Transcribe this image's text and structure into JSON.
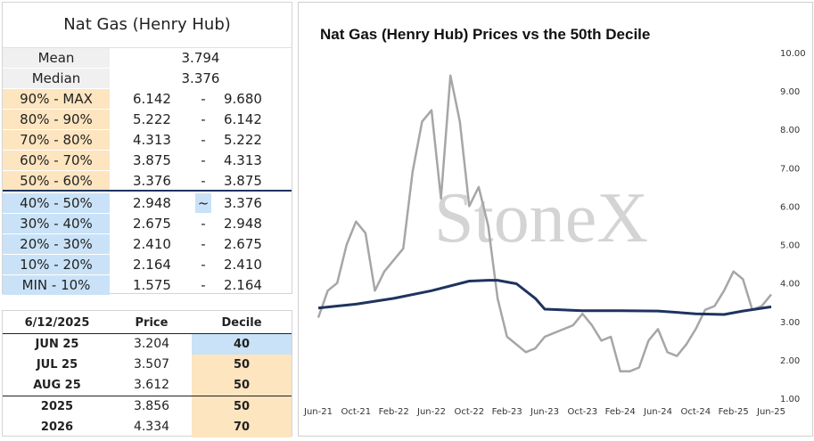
{
  "table": {
    "title": "Nat Gas (Henry Hub)",
    "mean_label": "Mean",
    "mean_value": "3.794",
    "median_label": "Median",
    "median_value": "3.376",
    "deciles": [
      {
        "label": "90% - MAX",
        "lo": "6.142",
        "sep": "-",
        "hi": "9.680",
        "color": "orange"
      },
      {
        "label": "80% - 90%",
        "lo": "5.222",
        "sep": "-",
        "hi": "6.142",
        "color": "orange"
      },
      {
        "label": "70% - 80%",
        "lo": "4.313",
        "sep": "-",
        "hi": "5.222",
        "color": "orange"
      },
      {
        "label": "60% - 70%",
        "lo": "3.875",
        "sep": "-",
        "hi": "4.313",
        "color": "orange"
      },
      {
        "label": "50% - 60%",
        "lo": "3.376",
        "sep": "-",
        "hi": "3.875",
        "color": "orange"
      },
      {
        "label": "40% - 50%",
        "lo": "2.948",
        "sep": "~",
        "hi": "3.376",
        "color": "blue"
      },
      {
        "label": "30% - 40%",
        "lo": "2.675",
        "sep": "-",
        "hi": "2.948",
        "color": "blue"
      },
      {
        "label": "20% - 30%",
        "lo": "2.410",
        "sep": "-",
        "hi": "2.675",
        "color": "blue"
      },
      {
        "label": "10% - 20%",
        "lo": "2.164",
        "sep": "-",
        "hi": "2.410",
        "color": "blue"
      },
      {
        "label": "MIN - 10%",
        "lo": "1.575",
        "sep": "-",
        "hi": "2.164",
        "color": "blue"
      }
    ]
  },
  "contracts": {
    "date_header": "6/12/2025",
    "price_header": "Price",
    "decile_header": "Decile",
    "rows": [
      {
        "name": "JUN 25",
        "price": "3.204",
        "decile": "40",
        "color": "blue"
      },
      {
        "name": "JUL 25",
        "price": "3.507",
        "decile": "50",
        "color": "orange"
      },
      {
        "name": "AUG 25",
        "price": "3.612",
        "decile": "50",
        "color": "orange"
      },
      {
        "name": "2025",
        "price": "3.856",
        "decile": "50",
        "color": "orange"
      },
      {
        "name": "2026",
        "price": "4.334",
        "decile": "70",
        "color": "orange"
      }
    ]
  },
  "watermark": "StoneX",
  "chart_data": {
    "type": "line",
    "title": "Nat Gas (Henry Hub) Prices vs the 50th Decile",
    "x_ticks": [
      "Jun-21",
      "Oct-21",
      "Feb-22",
      "Jun-22",
      "Oct-22",
      "Feb-23",
      "Jun-23",
      "Oct-23",
      "Feb-24",
      "Jun-24",
      "Oct-24",
      "Feb-25",
      "Jun-25"
    ],
    "y_ticks": [
      "1.00",
      "2.00",
      "3.00",
      "4.00",
      "5.00",
      "6.00",
      "7.00",
      "8.00",
      "9.00",
      "10.00"
    ],
    "ylim": [
      1,
      10
    ],
    "xlim": [
      "Jun-21",
      "Jun-25"
    ],
    "y_axis_position": "right",
    "grid": false,
    "series": [
      {
        "color": "#a6a6a6",
        "x": [
          "Jun-21",
          "Jul-21",
          "Aug-21",
          "Sep-21",
          "Oct-21",
          "Nov-21",
          "Dec-21",
          "Jan-22",
          "Feb-22",
          "Mar-22",
          "Apr-22",
          "May-22",
          "Jun-22",
          "Jul-22",
          "Aug-22",
          "Sep-22",
          "Oct-22",
          "Nov-22",
          "Dec-22",
          "Jan-23",
          "Feb-23",
          "Mar-23",
          "Apr-23",
          "May-23",
          "Jun-23",
          "Jul-23",
          "Aug-23",
          "Sep-23",
          "Oct-23",
          "Nov-23",
          "Dec-23",
          "Jan-24",
          "Feb-24",
          "Mar-24",
          "Apr-24",
          "May-24",
          "Jun-24",
          "Jul-24",
          "Aug-24",
          "Sep-24",
          "Oct-24",
          "Nov-24",
          "Dec-24",
          "Jan-25",
          "Feb-25",
          "Mar-25",
          "Apr-25",
          "May-25",
          "Jun-25"
        ],
        "y": [
          3.1,
          3.8,
          4.0,
          5.0,
          5.6,
          5.3,
          3.8,
          4.3,
          4.6,
          4.9,
          6.9,
          8.2,
          8.5,
          6.2,
          9.4,
          8.2,
          6.0,
          6.5,
          5.5,
          3.6,
          2.6,
          2.4,
          2.2,
          2.3,
          2.6,
          2.7,
          2.8,
          2.9,
          3.2,
          2.9,
          2.5,
          2.6,
          1.7,
          1.7,
          1.8,
          2.5,
          2.8,
          2.2,
          2.1,
          2.4,
          2.8,
          3.3,
          3.4,
          3.8,
          4.3,
          4.1,
          3.3,
          3.4,
          3.7
        ]
      },
      {
        "color": "#1f3360",
        "x": [
          "Jun-21",
          "Oct-21",
          "Feb-22",
          "Jun-22",
          "Oct-22",
          "Dec-22",
          "Jan-23",
          "Mar-23",
          "May-23",
          "Jun-23",
          "Oct-23",
          "Feb-24",
          "Jun-24",
          "Oct-24",
          "Jan-25",
          "Mar-25",
          "Jun-25"
        ],
        "y": [
          3.35,
          3.45,
          3.6,
          3.8,
          4.05,
          4.07,
          4.07,
          3.98,
          3.6,
          3.32,
          3.28,
          3.28,
          3.27,
          3.2,
          3.18,
          3.27,
          3.38
        ]
      }
    ]
  }
}
